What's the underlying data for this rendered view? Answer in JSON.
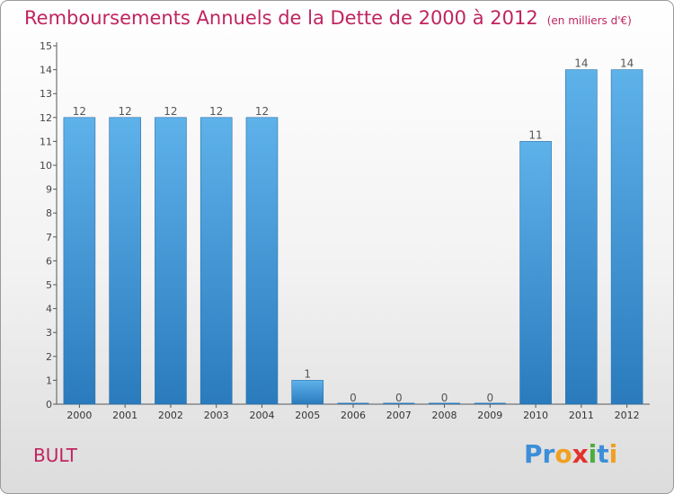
{
  "header": {
    "title": "Remboursements Annuels de la Dette de 2000 à 2012",
    "unit": "(en milliers d'€)"
  },
  "footer": {
    "commune": "BULT",
    "logo_letters": [
      {
        "ch": "P",
        "color": "#3d8ed8"
      },
      {
        "ch": "r",
        "color": "#3d8ed8"
      },
      {
        "ch": "o",
        "color": "#f0a020"
      },
      {
        "ch": "x",
        "color": "#e2322c"
      },
      {
        "ch": "i",
        "color": "#4cae3c"
      },
      {
        "ch": "t",
        "color": "#3d8ed8"
      },
      {
        "ch": "i",
        "color": "#f0a020"
      }
    ]
  },
  "chart_data": {
    "type": "bar",
    "title": "Remboursements Annuels de la Dette de 2000 à 2012",
    "xlabel": "",
    "ylabel": "",
    "categories": [
      "2000",
      "2001",
      "2002",
      "2003",
      "2004",
      "2005",
      "2006",
      "2007",
      "2008",
      "2009",
      "2010",
      "2011",
      "2012"
    ],
    "values": [
      12,
      12,
      12,
      12,
      12,
      1,
      0,
      0,
      0,
      0,
      11,
      14,
      14
    ],
    "data_labels": [
      "12",
      "12",
      "12",
      "12",
      "12",
      "1",
      "0",
      "0",
      "0",
      "0",
      "11",
      "14",
      "14"
    ],
    "ylim": [
      0,
      15
    ],
    "yticks": [
      0,
      1,
      2,
      3,
      4,
      5,
      6,
      7,
      8,
      9,
      10,
      11,
      12,
      13,
      14,
      15
    ],
    "grid": false,
    "legend": "none",
    "bar_color_light": "#5aaee8",
    "bar_color_dark": "#2a7bbd",
    "title_color": "#c0245f"
  }
}
